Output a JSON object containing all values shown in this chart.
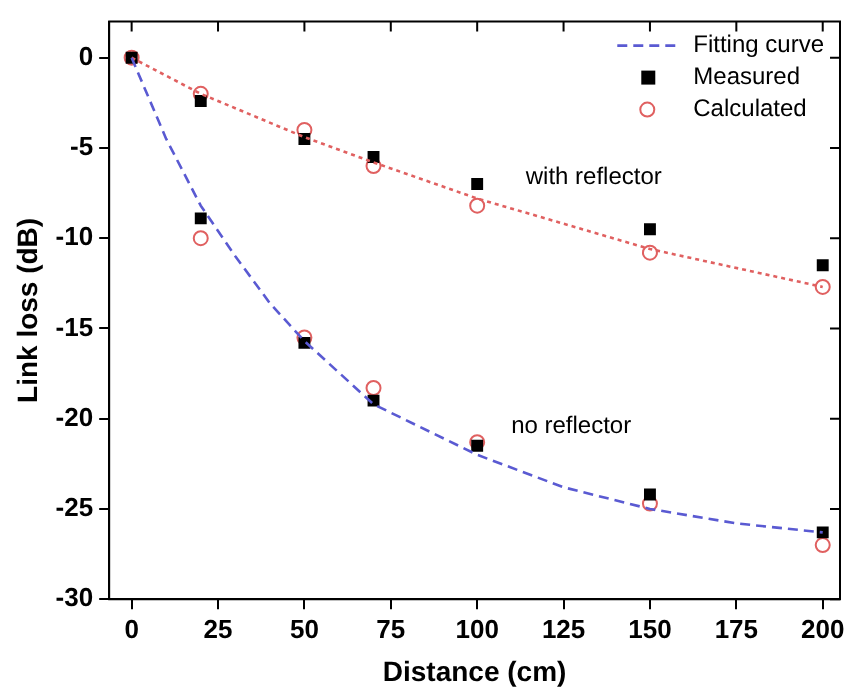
{
  "chart_data": {
    "type": "scatter",
    "xlabel": "Distance (cm)",
    "ylabel": "Link loss (dB)",
    "xlim": [
      -6.5,
      205
    ],
    "ylim": [
      -30,
      2
    ],
    "xticks": [
      0,
      25,
      50,
      75,
      100,
      125,
      150,
      175,
      200
    ],
    "yticks": [
      -30,
      -25,
      -20,
      -15,
      -10,
      -5,
      0
    ],
    "grid": false,
    "legend": "top right",
    "series": [
      {
        "name": "Fitting curve",
        "type": "line",
        "color": "#5a5ad2",
        "line_style": "dashed",
        "marker": "none",
        "x": [
          0,
          10,
          20,
          30,
          40,
          50,
          70,
          100,
          125,
          150,
          175,
          200
        ],
        "values": [
          0,
          -4.5,
          -8.2,
          -11.0,
          -13.6,
          -15.7,
          -19.2,
          -22.0,
          -23.8,
          -25.0,
          -25.8,
          -26.3
        ]
      },
      {
        "type": "line",
        "color": "#e06060",
        "line_style": "dotted",
        "marker": "none",
        "x": [
          0,
          20,
          50,
          70,
          100,
          150,
          200
        ],
        "values": [
          0,
          -2.0,
          -4.4,
          -5.8,
          -7.8,
          -10.6,
          -12.7
        ]
      },
      {
        "name": "Measured",
        "color": "#000000",
        "marker": "square",
        "x": [
          0,
          20,
          50,
          70,
          100,
          150,
          200,
          20,
          50,
          70,
          100,
          150,
          200
        ],
        "values": [
          0,
          -2.4,
          -4.5,
          -5.5,
          -7.0,
          -9.5,
          -11.5,
          -8.9,
          -15.8,
          -19.0,
          -21.5,
          -24.2,
          -26.3
        ]
      },
      {
        "name": "Calculated",
        "color": "#e06060",
        "marker": "circle",
        "x": [
          0,
          20,
          50,
          70,
          100,
          150,
          200,
          20,
          50,
          70,
          100,
          150,
          200
        ],
        "values": [
          0,
          -2.0,
          -4.0,
          -6.0,
          -8.2,
          -10.8,
          -12.7,
          -10.0,
          -15.5,
          -18.3,
          -21.3,
          -24.7,
          -27.0
        ]
      }
    ],
    "annotations": [
      "with reflector",
      "no reflector"
    ]
  }
}
